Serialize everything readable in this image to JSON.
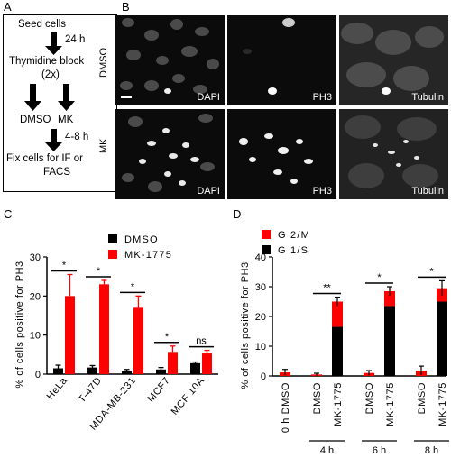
{
  "panel_labels": {
    "a": "A",
    "b": "B",
    "c": "C",
    "d": "D"
  },
  "flowchart": {
    "steps": [
      "Seed cells",
      "24 h",
      "Thymidine block",
      "(2x)",
      "DMSO",
      "MK",
      "4-8 h",
      "Fix cells for IF or",
      "FACS"
    ]
  },
  "micrographs": {
    "rows": [
      "DMSO",
      "MK"
    ],
    "channels": [
      "DAPI",
      "PH3",
      "Tubulin"
    ]
  },
  "chart_data": [
    {
      "type": "bar",
      "panel": "C",
      "title": "",
      "xlabel": "",
      "ylabel": "% of cells positive for PH3",
      "ylim": [
        0,
        30
      ],
      "yticks": [
        0,
        10,
        20,
        30
      ],
      "categories": [
        "HeLa",
        "T-47D",
        "MDA-MB-231",
        "MCF7",
        "MCF 10A"
      ],
      "series": [
        {
          "name": "DMSO",
          "color": "#000000",
          "values": [
            1.5,
            1.7,
            0.9,
            1.2,
            2.8
          ],
          "errors": [
            0.8,
            0.5,
            0.3,
            0.5,
            0.3
          ]
        },
        {
          "name": "MK-1775",
          "color": "#ff0000",
          "values": [
            20,
            23,
            17,
            5.7,
            5.3
          ],
          "errors": [
            5.5,
            1.0,
            3.0,
            1.5,
            0.8
          ]
        }
      ],
      "significance": [
        "*",
        "*",
        "*",
        "*",
        "ns"
      ],
      "legend": "top-right"
    },
    {
      "type": "bar",
      "stacked": true,
      "panel": "D",
      "title": "",
      "xlabel": "",
      "ylabel": "% of cells positive for PH3",
      "ylim": [
        0,
        40
      ],
      "yticks": [
        0,
        10,
        20,
        30,
        40
      ],
      "categories": [
        "0 h DMSO",
        "DMSO",
        "MK-1775",
        "DMSO",
        "MK-1775",
        "DMSO",
        "MK-1775"
      ],
      "groups": [
        "4 h",
        "6 h",
        "8 h"
      ],
      "series": [
        {
          "name": "G 1/S",
          "color": "#000000",
          "values": [
            0,
            0,
            16.5,
            0,
            23.5,
            0,
            25
          ]
        },
        {
          "name": "G 2/M",
          "color": "#ff0000",
          "values": [
            1.2,
            0.5,
            8.5,
            1.0,
            5.0,
            1.8,
            4.5
          ]
        }
      ],
      "errors": [
        1.0,
        0.4,
        1.5,
        0.8,
        1.5,
        1.5,
        2.5
      ],
      "significance": [
        "**",
        "*",
        "*"
      ],
      "legend": "top-left"
    }
  ]
}
